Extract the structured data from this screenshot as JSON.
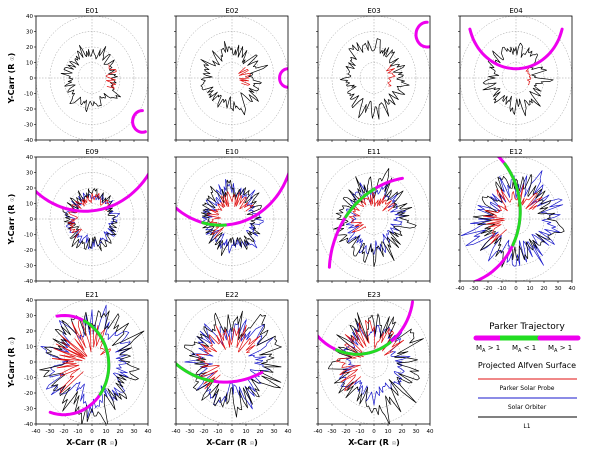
{
  "figure": {
    "ylabel": "Y-Carr (R",
    "xlabel": "X-Carr (R",
    "unit_symbol": "☉",
    "ticks": [
      "-40",
      "-30",
      "-20",
      "-10",
      "0",
      "10",
      "20",
      "30",
      "40"
    ]
  },
  "legend": {
    "title": "Parker Trajectory",
    "segments": [
      "M",
      "M",
      "M"
    ],
    "segment_suffix": [
      "> 1",
      "< 1",
      "> 1"
    ],
    "subscript": "A",
    "surface_title": "Projected Alfven Surface",
    "items": [
      "Parker Solar Probe",
      "Solar Orbiter",
      "L1"
    ]
  },
  "colors": {
    "psp": "#e01010",
    "solo": "#1a1acc",
    "l1": "#000000",
    "trajectory_super": "#ee00ee",
    "trajectory_sub": "#22dd22",
    "grid": "#999999"
  },
  "chart_data": [
    {
      "type": "scatter",
      "title": "E01",
      "axes": "polar-cartesian",
      "xlim": [
        -40,
        40
      ],
      "ylim": [
        -40,
        40
      ],
      "radial_rings": [
        10,
        20,
        30,
        40
      ],
      "series": [
        {
          "name": "L1",
          "approx_radius_range": [
            10,
            22
          ]
        },
        {
          "name": "Parker Solar Probe",
          "approx_radius_range": [
            10,
            18
          ]
        }
      ],
      "trajectory": [
        {
          "segment": "MA>1",
          "approx_center": [
            35,
            -26
          ]
        }
      ]
    },
    {
      "type": "scatter",
      "title": "E02",
      "axes": "polar-cartesian",
      "xlim": [
        -40,
        40
      ],
      "ylim": [
        -40,
        40
      ],
      "radial_rings": [
        10,
        20,
        30,
        40
      ],
      "series": [
        {
          "name": "L1",
          "approx_radius_range": [
            10,
            24
          ]
        },
        {
          "name": "Parker Solar Probe",
          "approx_radius_range": [
            5,
            15
          ]
        }
      ],
      "trajectory": [
        {
          "segment": "MA>1",
          "approx_center": [
            35,
            0
          ]
        }
      ]
    },
    {
      "type": "scatter",
      "title": "E03",
      "axes": "polar-cartesian",
      "xlim": [
        -40,
        40
      ],
      "ylim": [
        -40,
        40
      ],
      "radial_rings": [
        10,
        20,
        30,
        40
      ],
      "series": [
        {
          "name": "L1",
          "approx_radius_range": [
            12,
            26
          ]
        },
        {
          "name": "Parker Solar Probe",
          "approx_radius_range": [
            10,
            16
          ]
        }
      ],
      "trajectory": [
        {
          "segment": "MA>1",
          "approx_center": [
            35,
            28
          ]
        }
      ]
    },
    {
      "type": "scatter",
      "title": "E04",
      "axes": "polar-cartesian",
      "xlim": [
        -40,
        40
      ],
      "ylim": [
        -40,
        40
      ],
      "radial_rings": [
        10,
        20,
        30,
        40
      ],
      "series": [
        {
          "name": "L1",
          "approx_radius_range": [
            10,
            24
          ]
        },
        {
          "name": "Parker Solar Probe",
          "approx_radius_range": [
            8,
            14
          ]
        }
      ],
      "trajectory": [
        {
          "segment": "MA>1",
          "approx_center": [
            0,
            20
          ]
        }
      ]
    },
    {
      "type": "scatter",
      "title": "E09",
      "axes": "polar-cartesian",
      "xlim": [
        -40,
        40
      ],
      "ylim": [
        -40,
        40
      ],
      "radial_rings": [
        10,
        20,
        30,
        40
      ],
      "series": [
        {
          "name": "L1",
          "approx_radius_range": [
            10,
            22
          ]
        },
        {
          "name": "Solar Orbiter",
          "approx_radius_range": [
            10,
            20
          ]
        },
        {
          "name": "Parker Solar Probe",
          "approx_radius_range": [
            10,
            18
          ]
        }
      ],
      "trajectory": [
        {
          "segment": "MA>1",
          "approx_center": [
            0,
            40
          ]
        }
      ]
    },
    {
      "type": "scatter",
      "title": "E10",
      "axes": "polar-cartesian",
      "xlim": [
        -40,
        40
      ],
      "ylim": [
        -40,
        40
      ],
      "radial_rings": [
        10,
        20,
        30,
        40
      ],
      "series": [
        {
          "name": "L1",
          "approx_radius_range": [
            10,
            24
          ]
        },
        {
          "name": "Solar Orbiter",
          "approx_radius_range": [
            10,
            24
          ]
        },
        {
          "name": "Parker Solar Probe",
          "approx_radius_range": [
            8,
            18
          ]
        }
      ],
      "trajectory": [
        {
          "segment": "MA>1",
          "approx_center": [
            0,
            40
          ]
        },
        {
          "segment": "MA<1"
        }
      ]
    },
    {
      "type": "scatter",
      "title": "E11",
      "axes": "polar-cartesian",
      "xlim": [
        -40,
        40
      ],
      "ylim": [
        -40,
        40
      ],
      "radial_rings": [
        10,
        20,
        30,
        40
      ],
      "series": [
        {
          "name": "L1",
          "approx_radius_range": [
            12,
            30
          ]
        },
        {
          "name": "Solar Orbiter",
          "approx_radius_range": [
            10,
            24
          ]
        },
        {
          "name": "Parker Solar Probe",
          "approx_radius_range": [
            8,
            18
          ]
        }
      ],
      "trajectory": [
        {
          "segment": "MA>1"
        },
        {
          "segment": "MA<1"
        }
      ]
    },
    {
      "type": "scatter",
      "title": "E12",
      "axes": "polar-cartesian",
      "xlim": [
        -40,
        40
      ],
      "ylim": [
        -40,
        40
      ],
      "radial_rings": [
        10,
        20,
        30,
        40
      ],
      "series": [
        {
          "name": "L1",
          "approx_radius_range": [
            12,
            32
          ]
        },
        {
          "name": "Solar Orbiter",
          "approx_radius_range": [
            10,
            36
          ]
        },
        {
          "name": "Parker Solar Probe",
          "approx_radius_range": [
            8,
            24
          ]
        }
      ],
      "trajectory": [
        {
          "segment": "MA>1"
        },
        {
          "segment": "MA<1"
        }
      ]
    },
    {
      "type": "scatter",
      "title": "E21",
      "axes": "polar-cartesian",
      "xlim": [
        -40,
        40
      ],
      "ylim": [
        -40,
        40
      ],
      "radial_rings": [
        10,
        20,
        30,
        40
      ],
      "series": [
        {
          "name": "L1",
          "approx_radius_range": [
            15,
            38
          ]
        },
        {
          "name": "Solar Orbiter",
          "approx_radius_range": [
            12,
            34
          ]
        },
        {
          "name": "Parker Solar Probe",
          "approx_radius_range": [
            5,
            30
          ]
        }
      ],
      "trajectory": [
        {
          "segment": "MA>1"
        },
        {
          "segment": "MA<1"
        }
      ]
    },
    {
      "type": "scatter",
      "title": "E22",
      "axes": "polar-cartesian",
      "xlim": [
        -40,
        40
      ],
      "ylim": [
        -40,
        40
      ],
      "radial_rings": [
        10,
        20,
        30,
        40
      ],
      "series": [
        {
          "name": "L1",
          "approx_radius_range": [
            12,
            36
          ]
        },
        {
          "name": "Solar Orbiter",
          "approx_radius_range": [
            10,
            30
          ]
        },
        {
          "name": "Parker Solar Probe",
          "approx_radius_range": [
            8,
            26
          ]
        }
      ],
      "trajectory": [
        {
          "segment": "MA>1"
        },
        {
          "segment": "MA<1"
        }
      ]
    },
    {
      "type": "scatter",
      "title": "E23",
      "axes": "polar-cartesian",
      "xlim": [
        -40,
        40
      ],
      "ylim": [
        -40,
        40
      ],
      "radial_rings": [
        10,
        20,
        30,
        40
      ],
      "series": [
        {
          "name": "L1",
          "approx_radius_range": [
            10,
            36
          ]
        },
        {
          "name": "Solar Orbiter",
          "approx_radius_range": [
            12,
            26
          ]
        },
        {
          "name": "Parker Solar Probe",
          "approx_radius_range": [
            8,
            28
          ]
        }
      ],
      "trajectory": [
        {
          "segment": "MA>1"
        },
        {
          "segment": "MA<1"
        }
      ]
    }
  ]
}
